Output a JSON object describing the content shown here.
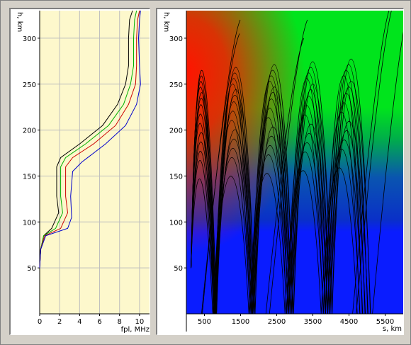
{
  "chart_data": [
    {
      "type": "line",
      "xlabel": "fpl, MHz",
      "ylabel": "h, km",
      "xlim": [
        0,
        11
      ],
      "ylim": [
        0,
        330
      ],
      "xticks": [
        0,
        2,
        4,
        6,
        8,
        10
      ],
      "yticks": [
        50,
        100,
        150,
        200,
        250,
        300
      ],
      "grid": true,
      "colors": {
        "background": "#fdf8cc",
        "grid": "#bdbdbd"
      },
      "series": [
        {
          "color": "#000000",
          "x": [
            0,
            0.1,
            0.4,
            1.2,
            1.9,
            1.7,
            1.7,
            2.1,
            4.0,
            6.3,
            7.8,
            8.6,
            8.9,
            8.9,
            9.0,
            9.3
          ],
          "y": [
            50,
            70,
            85,
            93,
            110,
            128,
            160,
            170,
            185,
            205,
            228,
            250,
            270,
            300,
            320,
            330
          ]
        },
        {
          "color": "#00b000",
          "x": [
            0,
            0.1,
            0.4,
            1.6,
            2.3,
            2.1,
            2.1,
            2.6,
            4.6,
            6.9,
            8.4,
            9.1,
            9.4,
            9.4,
            9.5,
            9.7
          ],
          "y": [
            50,
            70,
            85,
            93,
            110,
            128,
            160,
            170,
            185,
            205,
            228,
            250,
            270,
            300,
            320,
            330
          ]
        },
        {
          "color": "#cc0000",
          "x": [
            0,
            0.1,
            0.5,
            2.1,
            2.8,
            2.6,
            2.6,
            3.3,
            5.4,
            7.6,
            8.9,
            9.6,
            9.7,
            9.7,
            9.8,
            10.0
          ],
          "y": [
            50,
            70,
            85,
            93,
            110,
            128,
            160,
            170,
            185,
            205,
            228,
            250,
            270,
            300,
            320,
            330
          ]
        },
        {
          "color": "#0000cc",
          "x": [
            0,
            0.1,
            0.6,
            2.8,
            3.2,
            3.1,
            3.3,
            4.2,
            6.6,
            8.6,
            9.7,
            10.1,
            10.0,
            9.9,
            10.0,
            10.1
          ],
          "y": [
            50,
            70,
            85,
            93,
            105,
            128,
            155,
            165,
            185,
            205,
            228,
            250,
            270,
            300,
            320,
            330
          ]
        }
      ]
    },
    {
      "type": "line",
      "xlabel": "s, km",
      "ylabel": "h, km",
      "xlim": [
        0,
        6000
      ],
      "ylim": [
        0,
        330
      ],
      "xticks": [
        500,
        1500,
        2500,
        3500,
        4500,
        5500
      ],
      "yticks": [
        50,
        100,
        150,
        200,
        250,
        300
      ],
      "grid": false,
      "colors": {
        "ray": "#000000",
        "background_low": "#0a1cff",
        "background_mid": "#00e41c",
        "background_high": "#ff1400"
      },
      "ray_apex_heights_km": [
        145,
        165,
        175,
        185,
        195,
        205,
        215,
        225,
        232,
        238,
        244,
        250,
        256,
        262
      ],
      "hop_length_km": 1000,
      "launch_point_km": [
        130,
        50
      ]
    }
  ]
}
